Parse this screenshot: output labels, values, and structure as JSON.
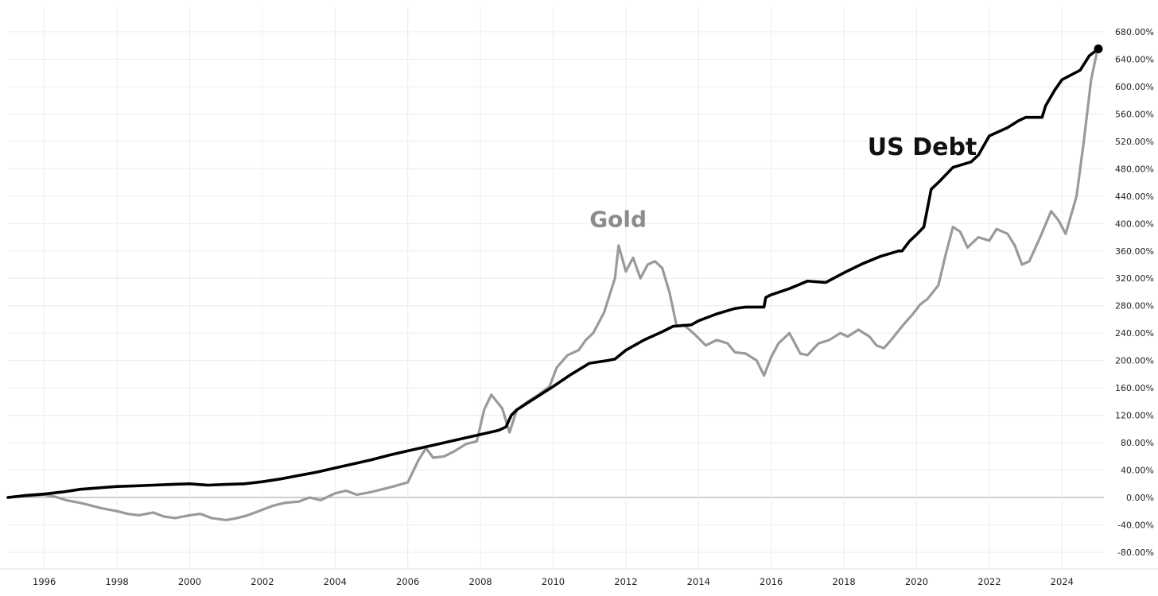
{
  "chart_data": {
    "type": "line",
    "title": "",
    "xlabel": "",
    "ylabel": "",
    "ylim": [
      -100,
      680
    ],
    "xlim": [
      1995.0,
      2025.15
    ],
    "grid": true,
    "y_ticks": [
      -80,
      -40,
      0,
      40,
      80,
      120,
      160,
      200,
      240,
      280,
      320,
      360,
      400,
      440,
      480,
      520,
      560,
      600,
      640,
      680
    ],
    "y_tick_labels": [
      "-80.00%",
      "-40.00%",
      "0.00%",
      "40.00%",
      "80.00%",
      "120.00%",
      "160.00%",
      "200.00%",
      "240.00%",
      "280.00%",
      "320.00%",
      "360.00%",
      "400.00%",
      "440.00%",
      "480.00%",
      "520.00%",
      "560.00%",
      "600.00%",
      "640.00%",
      "680.00%"
    ],
    "x_ticks": [
      1996,
      1998,
      2000,
      2002,
      2004,
      2006,
      2008,
      2010,
      2012,
      2014,
      2016,
      2018,
      2020,
      2022,
      2024
    ],
    "x_tick_labels": [
      "1996",
      "1998",
      "2000",
      "2002",
      "2004",
      "2006",
      "2008",
      "2010",
      "2012",
      "2014",
      "2016",
      "2018",
      "2020",
      "2022",
      "2024"
    ],
    "series": [
      {
        "name": "US Debt",
        "color": "#000000",
        "label_anchor": [
          2018.65,
          500
        ],
        "end_marker": true,
        "x": [
          1995.0,
          1995.5,
          1996.0,
          1996.5,
          1997.0,
          1997.5,
          1998.0,
          1998.5,
          1999.0,
          1999.5,
          2000.0,
          2000.5,
          2001.0,
          2001.5,
          2002.0,
          2002.5,
          2003.0,
          2003.5,
          2004.0,
          2004.5,
          2005.0,
          2005.5,
          2006.0,
          2006.5,
          2007.0,
          2007.5,
          2008.0,
          2008.5,
          2008.7,
          2008.85,
          2009.0,
          2009.5,
          2010.0,
          2010.5,
          2011.0,
          2011.5,
          2011.7,
          2012.0,
          2012.5,
          2013.0,
          2013.3,
          2013.8,
          2014.0,
          2014.5,
          2015.0,
          2015.3,
          2015.8,
          2015.85,
          2016.0,
          2016.5,
          2017.0,
          2017.5,
          2018.0,
          2018.5,
          2019.0,
          2019.5,
          2019.6,
          2019.8,
          2020.0,
          2020.2,
          2020.4,
          2020.6,
          2021.0,
          2021.5,
          2021.7,
          2022.0,
          2022.5,
          2022.8,
          2023.0,
          2023.45,
          2023.55,
          2023.8,
          2024.0,
          2024.5,
          2024.75,
          2025.0
        ],
        "y": [
          0,
          3,
          5,
          8,
          12,
          14,
          16,
          17,
          18,
          19,
          20,
          18,
          19,
          20,
          23,
          27,
          32,
          37,
          43,
          49,
          55,
          62,
          68,
          74,
          80,
          86,
          92,
          98,
          103,
          120,
          128,
          145,
          162,
          180,
          196,
          200,
          202,
          215,
          230,
          242,
          250,
          252,
          258,
          268,
          276,
          278,
          278,
          292,
          296,
          305,
          316,
          314,
          328,
          341,
          352,
          360,
          360,
          374,
          384,
          395,
          450,
          460,
          482,
          490,
          500,
          528,
          540,
          550,
          555,
          555,
          572,
          595,
          610,
          624,
          645,
          655
        ]
      },
      {
        "name": "Gold",
        "color": "#9a9a9a",
        "label_anchor": [
          2011.0,
          395
        ],
        "end_marker": false,
        "x": [
          1995.0,
          1995.5,
          1996.0,
          1996.3,
          1996.6,
          1997.0,
          1997.3,
          1997.6,
          1998.0,
          1998.3,
          1998.6,
          1999.0,
          1999.3,
          1999.6,
          2000.0,
          2000.3,
          2000.6,
          2001.0,
          2001.3,
          2001.6,
          2002.0,
          2002.3,
          2002.6,
          2003.0,
          2003.3,
          2003.6,
          2004.0,
          2004.3,
          2004.6,
          2005.0,
          2005.3,
          2005.6,
          2006.0,
          2006.3,
          2006.5,
          2006.7,
          2007.0,
          2007.3,
          2007.6,
          2007.9,
          2008.1,
          2008.3,
          2008.6,
          2008.8,
          2009.0,
          2009.3,
          2009.6,
          2009.9,
          2010.1,
          2010.4,
          2010.7,
          2010.9,
          2011.1,
          2011.4,
          2011.7,
          2011.8,
          2012.0,
          2012.2,
          2012.4,
          2012.6,
          2012.8,
          2013.0,
          2013.2,
          2013.4,
          2013.6,
          2013.9,
          2014.2,
          2014.5,
          2014.8,
          2015.0,
          2015.3,
          2015.6,
          2015.8,
          2016.0,
          2016.2,
          2016.5,
          2016.8,
          2017.0,
          2017.3,
          2017.6,
          2017.9,
          2018.1,
          2018.4,
          2018.7,
          2018.9,
          2019.1,
          2019.3,
          2019.6,
          2019.9,
          2020.1,
          2020.3,
          2020.6,
          2020.8,
          2021.0,
          2021.2,
          2021.4,
          2021.7,
          2022.0,
          2022.2,
          2022.5,
          2022.7,
          2022.9,
          2023.1,
          2023.4,
          2023.7,
          2023.9,
          2024.1,
          2024.4,
          2024.6,
          2024.8,
          2025.0
        ],
        "y": [
          0,
          2,
          4,
          1,
          -4,
          -8,
          -12,
          -16,
          -20,
          -24,
          -26,
          -22,
          -28,
          -30,
          -26,
          -24,
          -30,
          -33,
          -30,
          -26,
          -18,
          -12,
          -8,
          -6,
          0,
          -4,
          6,
          10,
          4,
          8,
          12,
          16,
          22,
          55,
          72,
          58,
          60,
          68,
          78,
          82,
          128,
          150,
          130,
          95,
          128,
          140,
          150,
          162,
          190,
          208,
          215,
          230,
          240,
          270,
          320,
          368,
          330,
          350,
          320,
          340,
          345,
          335,
          300,
          250,
          252,
          238,
          222,
          230,
          225,
          212,
          210,
          200,
          178,
          205,
          225,
          240,
          210,
          208,
          225,
          230,
          240,
          235,
          245,
          235,
          222,
          218,
          230,
          250,
          268,
          282,
          290,
          310,
          355,
          395,
          388,
          365,
          380,
          375,
          392,
          385,
          368,
          340,
          345,
          380,
          418,
          405,
          385,
          440,
          520,
          610,
          660
        ]
      }
    ]
  }
}
